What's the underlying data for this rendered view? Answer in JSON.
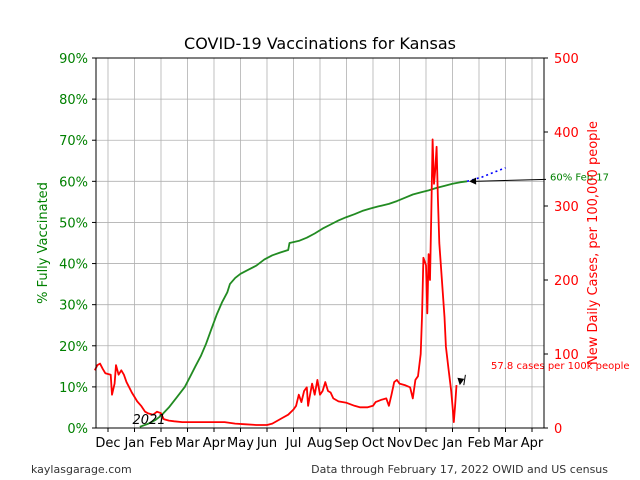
{
  "chart_data": {
    "type": "line",
    "title": "COVID-19 Vaccinations for Kansas",
    "x_tick_labels": [
      "Dec",
      "Jan",
      "Feb",
      "Mar",
      "Apr",
      "May",
      "Jun",
      "Jul",
      "Aug",
      "Sep",
      "Oct",
      "Nov",
      "Dec",
      "Jan",
      "Feb",
      "Mar",
      "Apr"
    ],
    "year_annotation": "2021",
    "y_left": {
      "label": "% Fully Vaccinated",
      "ylim": [
        0,
        90
      ],
      "ticks": [
        0,
        10,
        20,
        30,
        40,
        50,
        60,
        70,
        80,
        90
      ],
      "tick_labels": [
        "0%",
        "10%",
        "20%",
        "30%",
        "40%",
        "50%",
        "60%",
        "70%",
        "80%",
        "90%"
      ],
      "color": "#008000"
    },
    "y_right": {
      "label": "New Daily Cases, per 100,000 people",
      "ylim": [
        0,
        500
      ],
      "ticks": [
        0,
        100,
        200,
        300,
        400,
        500
      ],
      "tick_labels": [
        "0",
        "100",
        "200",
        "300",
        "400",
        "500"
      ],
      "color": "#ff0000"
    },
    "grid": true,
    "series": [
      {
        "axis": "left",
        "color": "#228B22",
        "points": [
          [
            1.2,
            0.3
          ],
          [
            1.5,
            1.0
          ],
          [
            1.8,
            2.0
          ],
          [
            2.0,
            3.0
          ],
          [
            2.3,
            5.0
          ],
          [
            2.6,
            7.5
          ],
          [
            2.9,
            10
          ],
          [
            3.1,
            12.5
          ],
          [
            3.3,
            15
          ],
          [
            3.5,
            17.5
          ],
          [
            3.7,
            20.5
          ],
          [
            3.9,
            24
          ],
          [
            4.1,
            27.5
          ],
          [
            4.3,
            30.5
          ],
          [
            4.5,
            33
          ],
          [
            4.6,
            35
          ],
          [
            4.8,
            36.5
          ],
          [
            5.0,
            37.5
          ],
          [
            5.3,
            38.5
          ],
          [
            5.6,
            39.5
          ],
          [
            5.9,
            41
          ],
          [
            6.2,
            42
          ],
          [
            6.5,
            42.7
          ],
          [
            6.8,
            43.3
          ],
          [
            6.85,
            45
          ],
          [
            7.2,
            45.5
          ],
          [
            7.5,
            46.3
          ],
          [
            7.8,
            47.3
          ],
          [
            8.1,
            48.5
          ],
          [
            8.4,
            49.5
          ],
          [
            8.7,
            50.5
          ],
          [
            9.0,
            51.3
          ],
          [
            9.3,
            52
          ],
          [
            9.6,
            52.8
          ],
          [
            9.9,
            53.4
          ],
          [
            10.2,
            53.9
          ],
          [
            10.6,
            54.5
          ],
          [
            10.9,
            55.2
          ],
          [
            11.2,
            56
          ],
          [
            11.5,
            56.8
          ],
          [
            11.8,
            57.3
          ],
          [
            12.1,
            57.8
          ],
          [
            12.4,
            58.4
          ],
          [
            12.7,
            58.9
          ],
          [
            13.0,
            59.4
          ],
          [
            13.3,
            59.8
          ],
          [
            13.55,
            60.0
          ]
        ]
      },
      {
        "axis": "left",
        "color": "#0000ff",
        "style": "dotted",
        "points": [
          [
            13.55,
            60.0
          ],
          [
            14.1,
            61.0
          ],
          [
            14.6,
            62.3
          ],
          [
            15.0,
            63.3
          ]
        ]
      },
      {
        "axis": "right",
        "color": "#ff0000",
        "points": [
          [
            -0.5,
            78
          ],
          [
            -0.4,
            85
          ],
          [
            -0.3,
            87
          ],
          [
            -0.2,
            80
          ],
          [
            -0.1,
            74
          ],
          [
            0.0,
            73
          ],
          [
            0.1,
            72
          ],
          [
            0.15,
            45
          ],
          [
            0.25,
            60
          ],
          [
            0.3,
            85
          ],
          [
            0.4,
            72
          ],
          [
            0.5,
            78
          ],
          [
            0.6,
            72
          ],
          [
            0.7,
            62
          ],
          [
            0.8,
            55
          ],
          [
            0.9,
            48
          ],
          [
            1.0,
            42
          ],
          [
            1.1,
            36
          ],
          [
            1.25,
            30
          ],
          [
            1.4,
            22
          ],
          [
            1.5,
            20
          ],
          [
            1.7,
            18
          ],
          [
            1.85,
            22
          ],
          [
            2.0,
            20
          ],
          [
            2.1,
            12
          ],
          [
            2.3,
            10
          ],
          [
            2.5,
            9
          ],
          [
            2.8,
            8
          ],
          [
            3.2,
            8
          ],
          [
            3.6,
            8
          ],
          [
            4.0,
            8
          ],
          [
            4.4,
            8
          ],
          [
            4.8,
            6
          ],
          [
            5.2,
            5
          ],
          [
            5.6,
            4
          ],
          [
            6.0,
            4
          ],
          [
            6.2,
            6
          ],
          [
            6.4,
            10
          ],
          [
            6.6,
            14
          ],
          [
            6.8,
            18
          ],
          [
            7.0,
            25
          ],
          [
            7.1,
            30
          ],
          [
            7.2,
            45
          ],
          [
            7.3,
            35
          ],
          [
            7.4,
            50
          ],
          [
            7.5,
            55
          ],
          [
            7.55,
            30
          ],
          [
            7.6,
            40
          ],
          [
            7.7,
            60
          ],
          [
            7.8,
            45
          ],
          [
            7.9,
            65
          ],
          [
            8.0,
            45
          ],
          [
            8.1,
            50
          ],
          [
            8.2,
            62
          ],
          [
            8.3,
            50
          ],
          [
            8.4,
            48
          ],
          [
            8.5,
            40
          ],
          [
            8.7,
            36
          ],
          [
            9.0,
            34
          ],
          [
            9.3,
            30
          ],
          [
            9.5,
            28
          ],
          [
            9.8,
            28
          ],
          [
            10.0,
            30
          ],
          [
            10.1,
            35
          ],
          [
            10.3,
            38
          ],
          [
            10.5,
            40
          ],
          [
            10.6,
            30
          ],
          [
            10.7,
            45
          ],
          [
            10.8,
            62
          ],
          [
            10.9,
            65
          ],
          [
            11.0,
            60
          ],
          [
            11.2,
            58
          ],
          [
            11.4,
            55
          ],
          [
            11.5,
            40
          ],
          [
            11.6,
            65
          ],
          [
            11.7,
            70
          ],
          [
            11.8,
            100
          ],
          [
            11.85,
            150
          ],
          [
            11.9,
            230
          ],
          [
            12.0,
            220
          ],
          [
            12.05,
            155
          ],
          [
            12.1,
            235
          ],
          [
            12.15,
            200
          ],
          [
            12.2,
            290
          ],
          [
            12.25,
            390
          ],
          [
            12.3,
            330
          ],
          [
            12.35,
            350
          ],
          [
            12.4,
            380
          ],
          [
            12.45,
            310
          ],
          [
            12.5,
            250
          ],
          [
            12.6,
            200
          ],
          [
            12.7,
            150
          ],
          [
            12.75,
            110
          ],
          [
            12.85,
            80
          ],
          [
            12.95,
            50
          ],
          [
            13.0,
            30
          ],
          [
            13.05,
            8
          ],
          [
            13.1,
            30
          ],
          [
            13.15,
            58
          ]
        ]
      }
    ],
    "annotations": [
      {
        "text": "60% Feb 17",
        "axis": "left",
        "color": "#008000",
        "at": [
          13.55,
          60.0
        ],
        "text_at": [
          15.2,
          61.0
        ]
      },
      {
        "text": "57.8 cases per 100k people",
        "axis": "right",
        "color": "#ff0000",
        "at": [
          13.2,
          57.8
        ],
        "text_at": [
          13.6,
          80.0
        ]
      }
    ]
  },
  "footer": {
    "left": "kaylasgarage.com",
    "right": "Data through February 17, 2022 OWID and US census"
  }
}
